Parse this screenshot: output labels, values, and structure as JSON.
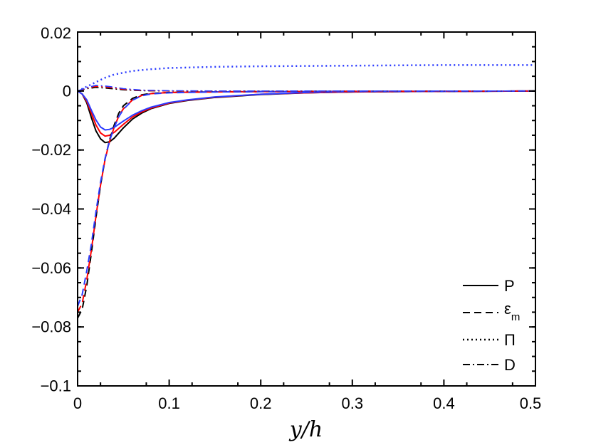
{
  "chart_data": {
    "type": "line",
    "xlabel": "y/h",
    "ylabel": "",
    "xlim": [
      0,
      0.5
    ],
    "ylim": [
      -0.1,
      0.02
    ],
    "xticks": [
      0,
      0.1,
      0.2,
      0.3,
      0.4,
      0.5
    ],
    "xtick_labels": [
      "0",
      "0.1",
      "0.2",
      "0.3",
      "0.4",
      "0.5"
    ],
    "yticks": [
      -0.1,
      -0.08,
      -0.06,
      -0.04,
      -0.02,
      0,
      0.02
    ],
    "ytick_labels": [
      "−0.1",
      "−0.08",
      "−0.06",
      "−0.04",
      "−0.02",
      "0",
      "0.02"
    ],
    "grid": false,
    "legend_position": "bottom-right",
    "legend": [
      {
        "label": "P",
        "sub": "",
        "style": "solid"
      },
      {
        "label": "ε",
        "sub": "m",
        "style": "dashed"
      },
      {
        "label": "Π",
        "sub": "",
        "style": "dotted"
      },
      {
        "label": "D",
        "sub": "",
        "style": "dashdot"
      }
    ],
    "colors": {
      "black": "#000000",
      "red": "#ff0000",
      "blue": "#2b3bff"
    },
    "series": [
      {
        "term": "P",
        "color": "black",
        "style": "solid",
        "x": [
          0,
          0.005,
          0.01,
          0.015,
          0.02,
          0.025,
          0.03,
          0.035,
          0.04,
          0.05,
          0.06,
          0.07,
          0.08,
          0.1,
          0.12,
          0.15,
          0.2,
          0.25,
          0.3,
          0.4,
          0.5
        ],
        "y": [
          0,
          -0.001,
          -0.004,
          -0.009,
          -0.0135,
          -0.0162,
          -0.0175,
          -0.0172,
          -0.016,
          -0.0125,
          -0.0095,
          -0.0075,
          -0.006,
          -0.0042,
          -0.0032,
          -0.0022,
          -0.0012,
          -0.0006,
          -0.0003,
          -0.0001,
          0
        ]
      },
      {
        "term": "P",
        "color": "red",
        "style": "solid",
        "x": [
          0,
          0.005,
          0.01,
          0.015,
          0.02,
          0.025,
          0.03,
          0.035,
          0.04,
          0.05,
          0.06,
          0.07,
          0.08,
          0.1,
          0.12,
          0.15,
          0.2,
          0.25,
          0.3,
          0.4,
          0.5
        ],
        "y": [
          0,
          -0.001,
          -0.0035,
          -0.0075,
          -0.0115,
          -0.0142,
          -0.0153,
          -0.015,
          -0.014,
          -0.0113,
          -0.0088,
          -0.0071,
          -0.0058,
          -0.0041,
          -0.0031,
          -0.0021,
          -0.0011,
          -0.0006,
          -0.0003,
          -0.0001,
          0
        ]
      },
      {
        "term": "P",
        "color": "blue",
        "style": "solid",
        "x": [
          0,
          0.005,
          0.01,
          0.015,
          0.02,
          0.025,
          0.03,
          0.035,
          0.04,
          0.05,
          0.06,
          0.07,
          0.08,
          0.1,
          0.12,
          0.15,
          0.2,
          0.25,
          0.3,
          0.4,
          0.5
        ],
        "y": [
          0,
          -0.001,
          -0.003,
          -0.0065,
          -0.0098,
          -0.0122,
          -0.0132,
          -0.013,
          -0.0123,
          -0.0102,
          -0.0082,
          -0.0067,
          -0.0055,
          -0.0039,
          -0.003,
          -0.002,
          -0.0011,
          -0.0005,
          -0.0002,
          -0.0001,
          0
        ]
      },
      {
        "term": "εm",
        "color": "black",
        "style": "dashed",
        "x": [
          0,
          0.005,
          0.01,
          0.015,
          0.02,
          0.025,
          0.03,
          0.035,
          0.04,
          0.045,
          0.05,
          0.06,
          0.07,
          0.08,
          0.1,
          0.15,
          0.2,
          0.3,
          0.4,
          0.5
        ],
        "y": [
          -0.077,
          -0.074,
          -0.066,
          -0.055,
          -0.043,
          -0.032,
          -0.023,
          -0.0165,
          -0.0115,
          -0.0075,
          -0.005,
          -0.0025,
          -0.0013,
          -0.0008,
          -0.0005,
          -0.0003,
          -0.0002,
          -0.0001,
          -0.0001,
          0
        ]
      },
      {
        "term": "εm",
        "color": "red",
        "style": "dashed",
        "x": [
          0,
          0.005,
          0.01,
          0.015,
          0.02,
          0.025,
          0.03,
          0.035,
          0.04,
          0.045,
          0.05,
          0.06,
          0.07,
          0.08,
          0.1,
          0.15,
          0.2,
          0.3,
          0.4,
          0.5
        ],
        "y": [
          -0.075,
          -0.072,
          -0.064,
          -0.054,
          -0.0425,
          -0.032,
          -0.0232,
          -0.017,
          -0.0122,
          -0.0085,
          -0.006,
          -0.003,
          -0.0015,
          -0.0009,
          -0.0005,
          -0.0003,
          -0.0002,
          -0.0001,
          -0.0001,
          0
        ]
      },
      {
        "term": "εm",
        "color": "blue",
        "style": "dashed",
        "x": [
          0,
          0.005,
          0.01,
          0.015,
          0.02,
          0.025,
          0.03,
          0.035,
          0.04,
          0.045,
          0.05,
          0.06,
          0.07,
          0.08,
          0.1,
          0.15,
          0.2,
          0.3,
          0.4,
          0.5
        ],
        "y": [
          -0.073,
          -0.069,
          -0.061,
          -0.052,
          -0.041,
          -0.031,
          -0.0228,
          -0.0168,
          -0.0123,
          -0.0087,
          -0.0062,
          -0.0031,
          -0.0016,
          -0.001,
          -0.0006,
          -0.0003,
          -0.0002,
          -0.0001,
          -0.0001,
          0
        ]
      },
      {
        "term": "Π",
        "color": "blue",
        "style": "dotted",
        "x": [
          0,
          0.01,
          0.02,
          0.03,
          0.04,
          0.06,
          0.08,
          0.1,
          0.15,
          0.2,
          0.25,
          0.3,
          0.35,
          0.4,
          0.45,
          0.5
        ],
        "y": [
          0,
          0.0015,
          0.003,
          0.0045,
          0.0056,
          0.0068,
          0.0074,
          0.0078,
          0.0082,
          0.0084,
          0.0085,
          0.0086,
          0.0087,
          0.0088,
          0.0088,
          0.0088
        ]
      },
      {
        "term": "D",
        "color": "black",
        "style": "dashdot",
        "x": [
          0,
          0.01,
          0.02,
          0.03,
          0.04,
          0.05,
          0.07,
          0.1,
          0.15,
          0.2,
          0.3,
          0.4,
          0.5
        ],
        "y": [
          0,
          0.0008,
          0.0012,
          0.001,
          0.0007,
          0.0004,
          0.0001,
          0,
          0,
          0,
          0,
          0,
          0
        ]
      },
      {
        "term": "D",
        "color": "red",
        "style": "dashdot",
        "x": [
          0,
          0.01,
          0.02,
          0.03,
          0.04,
          0.05,
          0.07,
          0.1,
          0.15,
          0.2,
          0.3,
          0.4,
          0.5
        ],
        "y": [
          0,
          0.001,
          0.0016,
          0.0014,
          0.001,
          0.0006,
          0.0002,
          0,
          0,
          0,
          0,
          0,
          0
        ]
      },
      {
        "term": "D",
        "color": "blue",
        "style": "dashdot",
        "x": [
          0,
          0.01,
          0.02,
          0.03,
          0.04,
          0.05,
          0.07,
          0.1,
          0.15,
          0.2,
          0.3,
          0.4,
          0.5
        ],
        "y": [
          0,
          0.0012,
          0.0019,
          0.0017,
          0.0013,
          0.0008,
          0.0003,
          0.0001,
          0,
          0,
          0,
          0,
          0
        ]
      }
    ]
  }
}
